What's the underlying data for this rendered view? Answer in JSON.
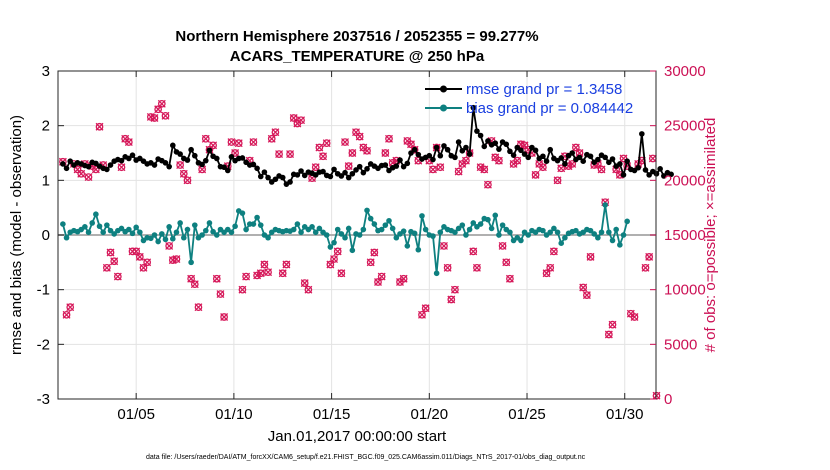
{
  "chart_data": {
    "type": "line",
    "title_line1": "Northern Hemisphere 2037516 / 2052355 = 99.277%",
    "title_line2": "ACARS_TEMPERATURE @ 250 hPa",
    "xlabel": "Jan.01,2017 00:00:00 start",
    "ylabel_left": "rmse and bias (model - observation)",
    "ylabel_right": "# of obs: o=possible; ×=assimilated",
    "xlim": [
      1,
      31.6
    ],
    "ylim_left": [
      -3,
      3
    ],
    "ylim_right": [
      0,
      30000
    ],
    "x_ticks": [
      5,
      10,
      15,
      20,
      25,
      30
    ],
    "x_tick_labels": [
      "01/05",
      "01/10",
      "01/15",
      "01/20",
      "01/25",
      "01/30"
    ],
    "yleft_ticks": [
      -3,
      -2,
      -1,
      0,
      1,
      2,
      3
    ],
    "yleft_tick_labels": [
      "-3",
      "-2",
      "-1",
      "0",
      "1",
      "2",
      "3"
    ],
    "yright_ticks": [
      0,
      5000,
      10000,
      15000,
      20000,
      25000,
      30000
    ],
    "yright_tick_labels": [
      "0",
      "5000",
      "10000",
      "15000",
      "20000",
      "25000",
      "30000"
    ],
    "grid": true,
    "legend_position": "top-right",
    "footnote": "data file: /Users/raeder/DAI/ATM_forcXX/CAM6_setup/f.e21.FHIST_BGC.f09_025.CAM6assim.011/Diags_NTrS_2017-01/obs_diag_output.nc",
    "colors": {
      "rmse": "#000000",
      "bias": "#0e8080",
      "obs": "#d6195a",
      "legend_text": "#1a3fe0",
      "zero_line": "#b0b0b0"
    },
    "series": [
      {
        "name": "rmse grand pr = 1.3458",
        "values": [
          1.3,
          1.22,
          1.35,
          1.28,
          1.32,
          1.3,
          1.27,
          1.25,
          1.33,
          1.31,
          1.26,
          1.22,
          1.2,
          1.28,
          1.35,
          1.38,
          1.36,
          1.43,
          1.4,
          1.46,
          1.37,
          1.4,
          1.35,
          1.3,
          1.32,
          1.28,
          1.39,
          1.36,
          1.32,
          1.25,
          1.64,
          1.52,
          1.48,
          1.4,
          1.37,
          1.56,
          1.45,
          1.32,
          1.29,
          1.36,
          1.55,
          1.44,
          1.4,
          1.25,
          1.24,
          1.18,
          1.43,
          1.36,
          1.4,
          1.41,
          1.33,
          1.28,
          1.29,
          1.22,
          1.07,
          1.15,
          1.05,
          0.97,
          1.02,
          1.08,
          1.05,
          0.93,
          0.97,
          1.11,
          1.1,
          1.17,
          1.09,
          1.15,
          1.13,
          1.1,
          1.15,
          1.16,
          1.09,
          1.07,
          1.2,
          1.12,
          1.08,
          1.14,
          1.05,
          1.12,
          1.19,
          1.25,
          1.14,
          1.21,
          1.3,
          1.26,
          1.22,
          1.27,
          1.28,
          1.18,
          1.23,
          1.26,
          1.37,
          1.25,
          1.31,
          1.5,
          1.56,
          1.47,
          1.39,
          1.42,
          1.45,
          1.38,
          1.6,
          1.45,
          1.63,
          1.56,
          1.45,
          1.42,
          1.7,
          1.54,
          1.6,
          1.48,
          2.33,
          1.9,
          1.82,
          1.62,
          1.72,
          1.65,
          1.68,
          1.57,
          1.7,
          1.66,
          1.53,
          1.46,
          1.6,
          1.55,
          1.48,
          1.42,
          1.6,
          1.55,
          1.4,
          1.44,
          1.35,
          1.56,
          1.4,
          1.36,
          1.41,
          1.3,
          1.45,
          1.5,
          1.38,
          1.42,
          1.35,
          1.47,
          1.44,
          1.33,
          1.38,
          1.46,
          1.42,
          1.33,
          1.39,
          1.26,
          1.3,
          1.1,
          1.35,
          1.2,
          1.18,
          1.23,
          1.85,
          1.19,
          1.1,
          1.16,
          1.12,
          1.21,
          1.08,
          1.14,
          1.11
        ]
      },
      {
        "name": "bias grand pr = 0.084442",
        "values": [
          0.2,
          -0.05,
          0.05,
          0.08,
          0.06,
          0.1,
          0.15,
          0.05,
          0.22,
          0.38,
          0.16,
          0.05,
          0.18,
          0.08,
          0.02,
          0.08,
          0.12,
          0.06,
          0.1,
          0.03,
          0.14,
          0.05,
          -0.1,
          -0.05,
          -0.06,
          0.0,
          -0.12,
          0.02,
          -0.08,
          0.15,
          -0.07,
          0.05,
          0.22,
          -0.05,
          0.1,
          -0.5,
          0.18,
          -0.05,
          0.0,
          0.08,
          0.22,
          0.06,
          0.0,
          0.1,
          0.05,
          0.1,
          0.05,
          0.16,
          0.44,
          0.4,
          0.1,
          0.2,
          0.2,
          0.32,
          0.18,
          0.0,
          -0.05,
          0.05,
          0.1,
          0.08,
          0.06,
          0.08,
          0.07,
          0.1,
          0.2,
          0.05,
          0.15,
          0.1,
          0.15,
          0.05,
          0.12,
          0.05,
          0.0,
          -0.22,
          -0.14,
          0.1,
          0.02,
          -0.05,
          0.12,
          -0.28,
          0.02,
          0.0,
          0.1,
          0.45,
          0.3,
          0.2,
          0.08,
          0.1,
          0.18,
          0.26,
          0.12,
          -0.05,
          0.02,
          0.07,
          -0.2,
          0.06,
          0.03,
          -0.27,
          0.35,
          0.1,
          0.0,
          -0.02,
          -0.7,
          0.05,
          0.15,
          0.1,
          0.08,
          0.05,
          0.12,
          0.18,
          0.0,
          0.1,
          0.22,
          0.15,
          0.2,
          0.3,
          0.28,
          0.12,
          0.36,
          0.0,
          0.18,
          0.1,
          0.05,
          -0.1,
          -0.05,
          -0.1,
          0.05,
          0.0,
          0.08,
          0.05,
          0.1,
          0.08,
          0.0,
          0.05,
          0.12,
          0.05,
          -0.15,
          -0.05,
          0.03,
          0.06,
          0.08,
          0.02,
          0.05,
          0.1,
          0.08,
          0.02,
          -0.05,
          0.05,
          0.55,
          0.05,
          -0.1,
          0.1,
          -0.18,
          0.0,
          0.25
        ]
      },
      {
        "name": "possible",
        "values": [
          21700,
          7700,
          8400,
          21500,
          21000,
          20600,
          21500,
          20300,
          21300,
          21000,
          24900,
          21400,
          12000,
          13400,
          12600,
          11200,
          21200,
          23800,
          23500,
          13500,
          13500,
          13000,
          12000,
          12500,
          25800,
          25700,
          26500,
          27000,
          25900,
          14000,
          12700,
          12800,
          21400,
          20600,
          20000,
          11000,
          10500,
          8400,
          21000,
          23800,
          22800,
          23200,
          11000,
          9600,
          7500,
          21300,
          23500,
          22500,
          23400,
          10000,
          11200,
          21800,
          23500,
          11300,
          11500,
          12300,
          11600,
          23800,
          24400,
          22400,
          11500,
          12300,
          22400,
          25700,
          25200,
          25500,
          10600,
          10000,
          20200,
          21200,
          23000,
          22200,
          23400,
          12300,
          12800,
          13500,
          11500,
          23500,
          21300,
          22500,
          24400,
          24000,
          23000,
          22700,
          12500,
          13400,
          10700,
          11200,
          22500,
          23800,
          21600,
          21800,
          10700,
          11000,
          23600,
          23300,
          22800,
          21800,
          7700,
          8300,
          21800,
          21000,
          23000,
          21200,
          14000,
          12000,
          9100,
          10000,
          20800,
          21500,
          21800,
          22500,
          13500,
          12000,
          21200,
          21000,
          19600,
          23600,
          22100,
          21800,
          14000,
          12500,
          11000,
          21500,
          21800,
          23300,
          23200,
          22800,
          22500,
          20500,
          21500,
          21200,
          11500,
          12000,
          13500,
          20000,
          21100,
          22200,
          21300,
          21500,
          23000,
          22500,
          10200,
          9500,
          13000,
          21400,
          21500,
          21000,
          18000,
          5900,
          6800,
          21000,
          20500,
          22000,
          21300,
          7800,
          7500,
          21500,
          21800,
          12000,
          13000,
          22000,
          300
        ]
      }
    ]
  }
}
